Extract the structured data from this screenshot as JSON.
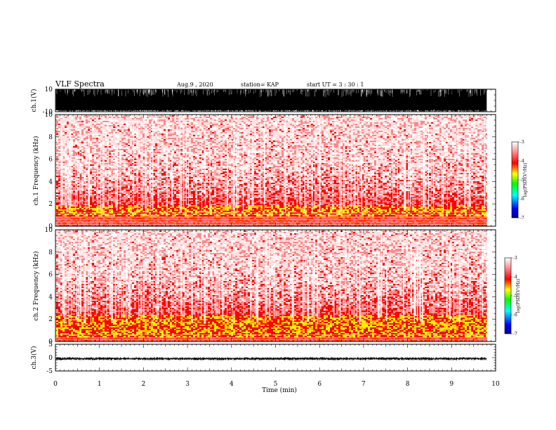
{
  "header": {
    "title": "VLF Spectra",
    "date": "Aug.9 , 2020",
    "station": "station= KAP",
    "start": "start UT = 3 : 30 : 1"
  },
  "chart_data": [
    {
      "type": "line",
      "name": "ch1-waveform",
      "ylabel": "ch.1(V)",
      "ylim": [
        -10,
        10
      ],
      "yticks": [
        10,
        -10
      ],
      "xlim": [
        0,
        10
      ],
      "data_end_min": 9.8,
      "amplitude_range_v": [
        -10,
        10
      ],
      "color": "#000000"
    },
    {
      "type": "heatmap",
      "name": "ch1-spectrogram",
      "ylabel": "ch.1 Frequency (kHz)",
      "ylim": [
        0,
        10
      ],
      "yticks": [
        0,
        2,
        4,
        6,
        8,
        10
      ],
      "xlim": [
        0,
        10
      ],
      "data_end_min": 9.8,
      "dominant_band_khz": [
        1.0,
        2.0
      ],
      "colorbar": {
        "label": "log(PSD)(V²/Hz)",
        "ticks": [
          "-3",
          "-4",
          "-5",
          "-6",
          "-7"
        ],
        "range": [
          -7,
          -3
        ]
      }
    },
    {
      "type": "heatmap",
      "name": "ch2-spectrogram",
      "ylabel": "ch.2 Frequency (kHz)",
      "ylim": [
        0,
        10
      ],
      "yticks": [
        0,
        2,
        4,
        6,
        8,
        10
      ],
      "xlim": [
        0,
        10
      ],
      "data_end_min": 9.8,
      "dominant_band_khz": [
        0.5,
        2.5
      ],
      "colorbar": {
        "label": "log(PSD)(V²/Hz)",
        "ticks": [
          "-3",
          "-4",
          "-5",
          "-6",
          "-7"
        ],
        "range": [
          -7,
          -3
        ]
      }
    },
    {
      "type": "line",
      "name": "ch3-waveform",
      "ylabel": "ch.3(V)",
      "ylim": [
        -5,
        5
      ],
      "yticks": [
        5,
        0,
        -5
      ],
      "xlim": [
        0,
        10
      ],
      "data_end_min": 9.8,
      "amplitude_range_v": [
        -1.0,
        0.2
      ],
      "color": "#000000"
    }
  ],
  "xaxis": {
    "label": "Time (min)",
    "ticks": [
      "0",
      "1",
      "2",
      "3",
      "4",
      "5",
      "6",
      "7",
      "8",
      "9",
      "10"
    ]
  },
  "colors": {
    "colormap": [
      "#000080",
      "#0000ff",
      "#00ffff",
      "#00ff00",
      "#ffff00",
      "#ff0000",
      "#ff9999",
      "#ffffff"
    ]
  }
}
